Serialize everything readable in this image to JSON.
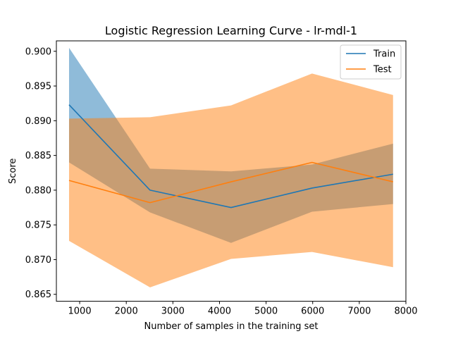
{
  "chart_data": {
    "type": "line",
    "title": "Logistic Regression Learning Curve - lr-mdl-1",
    "xlabel": "Number of samples in the training set",
    "ylabel": "Score",
    "xlim": [
      500,
      8000
    ],
    "ylim": [
      0.864,
      0.9015
    ],
    "xticks": [
      1000,
      2000,
      3000,
      4000,
      5000,
      6000,
      7000,
      8000
    ],
    "yticks": [
      0.865,
      0.87,
      0.875,
      0.88,
      0.885,
      0.89,
      0.895,
      0.9
    ],
    "ytick_labels": [
      "0.865",
      "0.870",
      "0.875",
      "0.880",
      "0.885",
      "0.890",
      "0.895",
      "0.900"
    ],
    "grid": false,
    "legend_position": "top-right",
    "x": [
      772,
      2510,
      4248,
      5986,
      7724
    ],
    "series": [
      {
        "name": "Train",
        "color": "#1f77b4",
        "fill_color": "#1f77b4",
        "fill_opacity": 0.5,
        "values": [
          0.8923,
          0.88,
          0.8775,
          0.8803,
          0.8823
        ],
        "lower": [
          0.884,
          0.8768,
          0.8724,
          0.8769,
          0.878
        ],
        "upper": [
          0.9005,
          0.8831,
          0.8827,
          0.8837,
          0.8867
        ]
      },
      {
        "name": "Test",
        "color": "#ff7f0e",
        "fill_color": "#ff7f0e",
        "fill_opacity": 0.5,
        "values": [
          0.8814,
          0.8782,
          0.8812,
          0.884,
          0.8812
        ],
        "lower": [
          0.8727,
          0.866,
          0.8701,
          0.8711,
          0.8689
        ],
        "upper": [
          0.8903,
          0.8905,
          0.8922,
          0.8968,
          0.8937
        ]
      }
    ]
  }
}
